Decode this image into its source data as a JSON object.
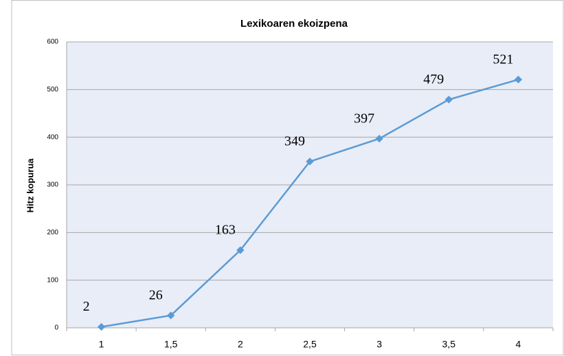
{
  "chart_data": {
    "type": "line",
    "title": "Lexikoaren ekoizpena",
    "y_label": "Hitz kopurua",
    "categories": [
      "1",
      "1,5",
      "2",
      "2,5",
      "3",
      "3,5",
      "4"
    ],
    "series": [
      {
        "name": "Hitz kopurua",
        "color": "#5b9bd5",
        "values": [
          2,
          26,
          163,
          349,
          397,
          479,
          521
        ]
      }
    ],
    "ylim": [
      0,
      600
    ],
    "yticks": [
      0,
      100,
      200,
      300,
      400,
      500,
      600
    ],
    "grid": true
  }
}
